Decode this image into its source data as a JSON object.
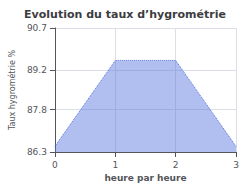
{
  "chart_data": {
    "type": "area",
    "title": "Evolution du taux d’hygrométrie",
    "xlabel": "heure par heure",
    "ylabel": "Taux hygrométrie %",
    "x": [
      0,
      1,
      2,
      3
    ],
    "values": [
      86.5,
      89.55,
      89.55,
      86.5
    ],
    "xlim": [
      0,
      3
    ],
    "ylim": [
      86.3,
      90.7
    ],
    "xticks": [
      0,
      1,
      2,
      3
    ],
    "yticks": [
      86.3,
      87.8,
      89.2,
      90.7
    ],
    "line_style": "dotted",
    "grid": true
  }
}
